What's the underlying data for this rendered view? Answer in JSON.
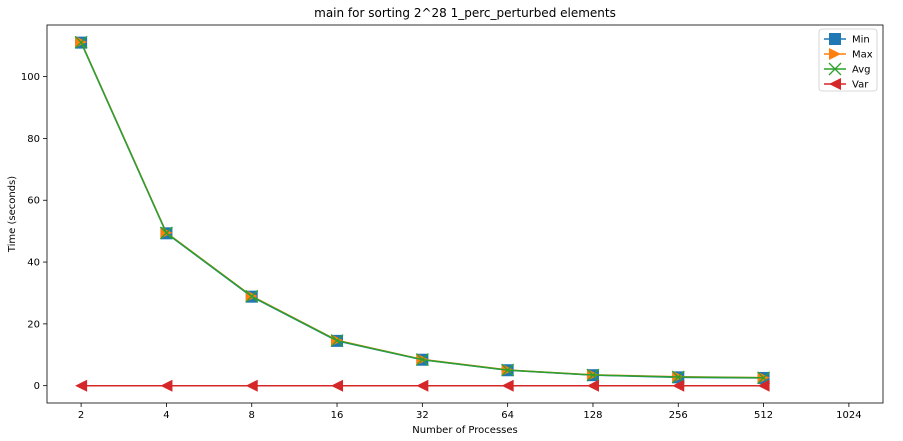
{
  "chart_data": {
    "type": "line",
    "title": "main for sorting 2^28 1_perc_perturbed elements",
    "xlabel": "Number of Processes",
    "ylabel": "Time (seconds)",
    "x_scale": "log2",
    "x_ticks": [
      "2",
      "4",
      "8",
      "16",
      "32",
      "64",
      "128",
      "256",
      "512",
      "1024"
    ],
    "x": [
      2,
      4,
      8,
      16,
      32,
      64,
      128,
      256,
      512
    ],
    "y_ticks": [
      "0",
      "20",
      "40",
      "60",
      "80",
      "100"
    ],
    "ylim": [
      -5.6,
      116.7
    ],
    "grid": false,
    "legend_position": "top-right",
    "series": [
      {
        "name": "Min",
        "color": "#1f77b4",
        "marker": "square",
        "values": [
          111.0,
          49.3,
          28.8,
          14.5,
          8.4,
          5.0,
          3.4,
          2.7,
          2.5
        ]
      },
      {
        "name": "Max",
        "color": "#ff7f0e",
        "marker": "triangle-right",
        "values": [
          111.2,
          49.5,
          29.0,
          14.7,
          8.5,
          5.1,
          3.5,
          2.9,
          2.6
        ]
      },
      {
        "name": "Avg",
        "color": "#2ca02c",
        "marker": "x",
        "values": [
          111.1,
          49.4,
          28.9,
          14.6,
          8.45,
          5.05,
          3.45,
          2.8,
          2.55
        ]
      },
      {
        "name": "Var",
        "color": "#d62728",
        "marker": "triangle-left",
        "values": [
          0,
          0,
          0,
          0,
          0,
          0,
          0,
          0,
          0
        ]
      }
    ]
  }
}
